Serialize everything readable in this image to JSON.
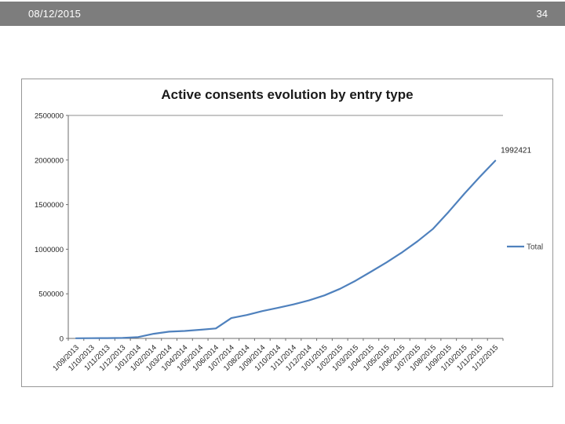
{
  "slide": {
    "header": {
      "date": "08/12/2015",
      "page_number": "34",
      "bg_color": "#7d7d7d"
    }
  },
  "chart_data": {
    "type": "line",
    "title": "Active consents evolution by entry type",
    "categories": [
      "1/09/2013",
      "1/10/2013",
      "1/11/2013",
      "1/12/2013",
      "1/01/2014",
      "1/02/2014",
      "1/03/2014",
      "1/04/2014",
      "1/05/2014",
      "1/06/2014",
      "1/07/2014",
      "1/08/2014",
      "1/09/2014",
      "1/10/2014",
      "1/11/2014",
      "1/12/2014",
      "1/01/2015",
      "1/02/2015",
      "1/03/2015",
      "1/04/2015",
      "1/05/2015",
      "1/06/2015",
      "1/07/2015",
      "1/08/2015",
      "1/09/2015",
      "1/10/2015",
      "1/11/2015",
      "1/12/2015"
    ],
    "series": [
      {
        "name": "Total",
        "color": "#4f81bd",
        "values": [
          1500,
          2500,
          3500,
          5000,
          15000,
          52000,
          76000,
          84000,
          97000,
          112000,
          228000,
          262000,
          306000,
          342000,
          381000,
          426000,
          482000,
          556000,
          646000,
          748000,
          852000,
          965000,
          1090000,
          1230000,
          1420000,
          1620000,
          1810000,
          1992421
        ]
      }
    ],
    "data_label": "1992421",
    "xlabel": "",
    "ylabel": "",
    "ylim": [
      0,
      2500000
    ],
    "y_tick_step": 500000,
    "y_tick_labels": [
      "0",
      "500000",
      "1000000",
      "1500000",
      "2000000",
      "2500000"
    ],
    "legend_position": "right",
    "legend_entries": [
      "Total"
    ],
    "grid": "top-gridline-only",
    "axis_color": "#6e6e6e",
    "grid_color": "#8c8c8c"
  }
}
